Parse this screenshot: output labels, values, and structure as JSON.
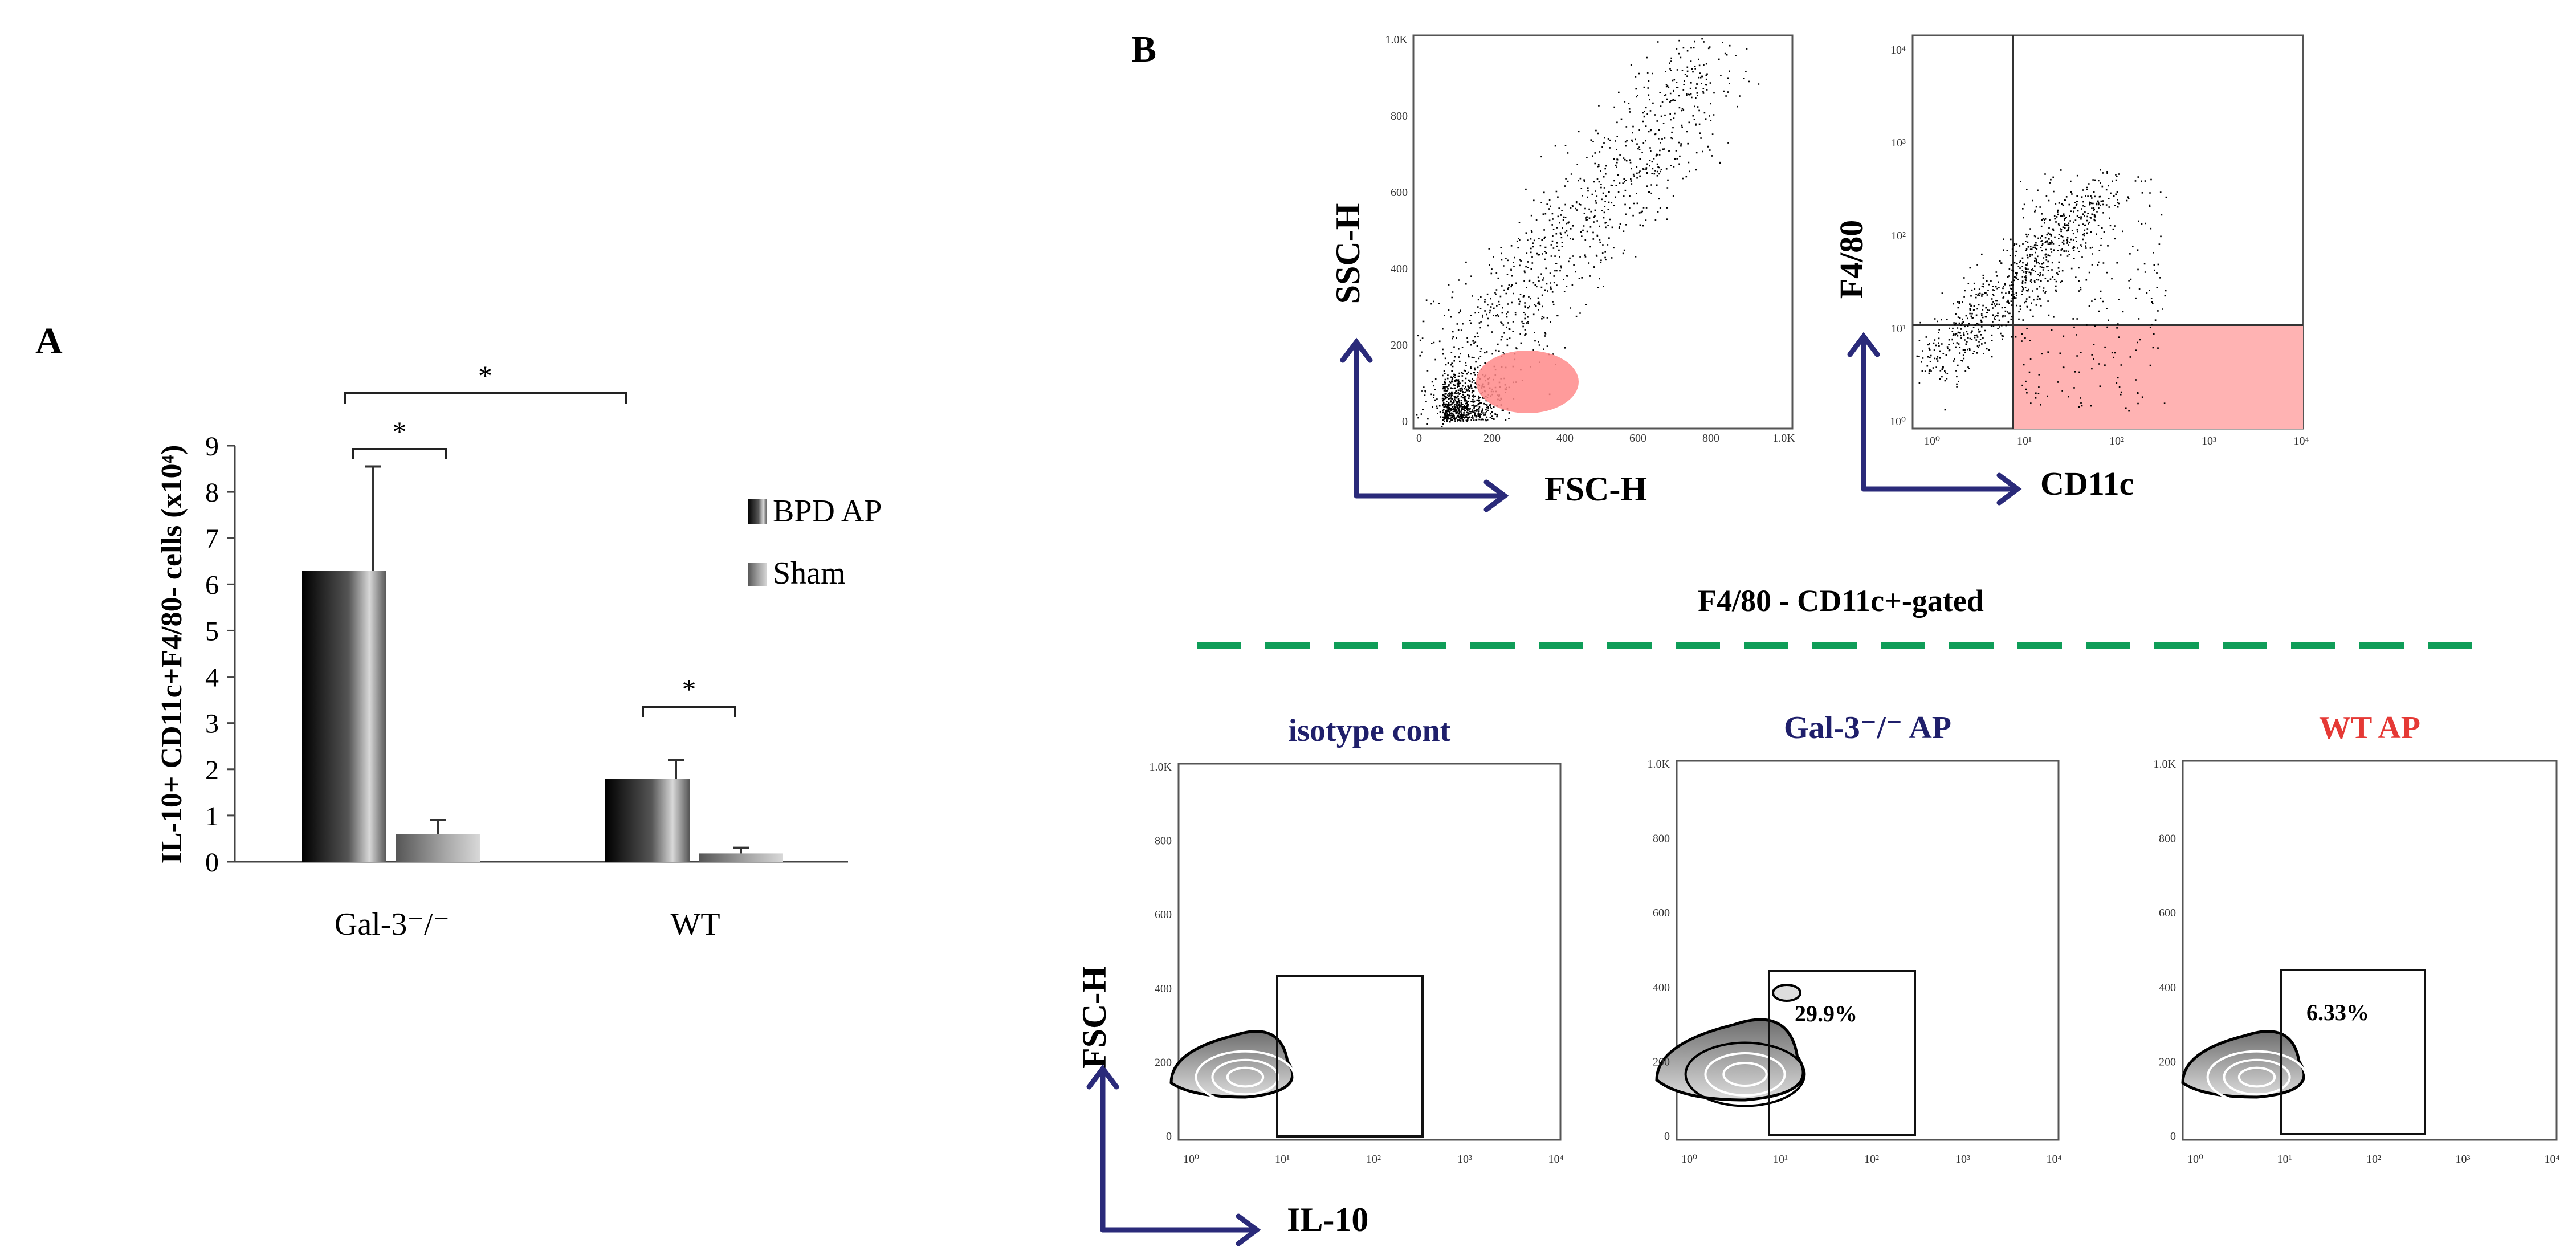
{
  "panel_labels": {
    "a": "A",
    "b": "B"
  },
  "chart_data": {
    "type": "bar",
    "title": "",
    "xlabel": "",
    "ylabel": "IL-10+ CD11c+F4/80- cells (x10⁴)",
    "ylim": [
      0,
      9
    ],
    "yticks": [
      "0",
      "1",
      "2",
      "3",
      "4",
      "5",
      "6",
      "7",
      "8",
      "9"
    ],
    "categories": [
      "Gal-3⁻/⁻",
      "WT"
    ],
    "series": [
      {
        "name": "BPD AP",
        "values": [
          6.3,
          1.8
        ],
        "errors": [
          2.25,
          0.4
        ],
        "color": "#1a1a1a"
      },
      {
        "name": "Sham",
        "values": [
          0.6,
          0.18
        ],
        "errors": [
          0.3,
          0.12
        ],
        "color": "#8c8c8c"
      }
    ],
    "significance": [
      {
        "label": "*",
        "between": "Gal-3⁻/⁻ BPD AP vs Sham"
      },
      {
        "label": "*",
        "between": "Gal-3⁻/⁻ BPD AP vs WT BPD AP"
      },
      {
        "label": "*",
        "between": "WT BPD AP vs Sham"
      }
    ],
    "legend": [
      "BPD AP",
      "Sham"
    ],
    "legend_position": "right"
  },
  "panel_b": {
    "scatter1": {
      "xlabel": "FSC-H",
      "ylabel": "SSC-H",
      "ticks": [
        "0",
        "200",
        "400",
        "600",
        "800",
        "1.0K"
      ]
    },
    "scatter2": {
      "xlabel": "CD11c",
      "ylabel": "F4/80",
      "ticks": [
        "10⁰",
        "10¹",
        "10²",
        "10³",
        "10⁴"
      ]
    },
    "gating_label": "F4/80 - CD11c+-gated",
    "contour_xlabel": "IL-10",
    "contour_ylabel": "FSC-H",
    "contour_yticks": [
      "0",
      "200",
      "400",
      "600",
      "800",
      "1.0K"
    ],
    "contour_xticks": [
      "10⁰",
      "10¹",
      "10²",
      "10³",
      "10⁴"
    ],
    "contours": [
      {
        "title": "isotype cont",
        "percent": "",
        "title_color": "#1f1f6b"
      },
      {
        "title": "Gal-3⁻/⁻ AP",
        "percent": "29.9%",
        "title_color": "#1f1f6b"
      },
      {
        "title": "WT AP",
        "percent": "6.33%",
        "title_color": "#e53935"
      }
    ],
    "colors": {
      "arrow": "#2a2a7a",
      "gate_fill": "#ff8a8a",
      "dashed": "#0f9d58"
    }
  }
}
